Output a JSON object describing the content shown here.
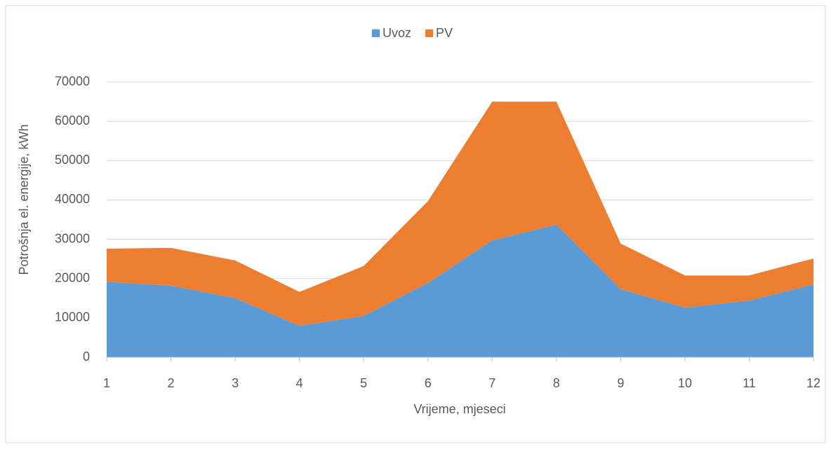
{
  "chart_data": {
    "type": "stacked-area",
    "y_label": "Potrošnja el. energije, kWh",
    "x_label": "Vrijeme, mjeseci",
    "x": [
      1,
      2,
      3,
      4,
      5,
      6,
      7,
      8,
      9,
      10,
      11,
      12
    ],
    "series": [
      {
        "name": "Uvoz",
        "color": "#5b9bd5",
        "values": [
          19200,
          18200,
          15000,
          8000,
          10500,
          18900,
          29700,
          33700,
          17300,
          12600,
          14400,
          18500
        ]
      },
      {
        "name": "PV",
        "color": "#ed7d31",
        "values": [
          8400,
          9600,
          9600,
          8600,
          12700,
          20800,
          35300,
          31300,
          11600,
          8200,
          6400,
          6600
        ]
      }
    ],
    "xlim": [
      1,
      12
    ],
    "xticks": [
      1,
      2,
      3,
      4,
      5,
      6,
      7,
      8,
      9,
      10,
      11,
      12
    ],
    "ylim": [
      0,
      70000
    ],
    "yticks": [
      0,
      10000,
      20000,
      30000,
      40000,
      50000,
      60000,
      70000
    ],
    "grid": true,
    "legend": "top"
  }
}
